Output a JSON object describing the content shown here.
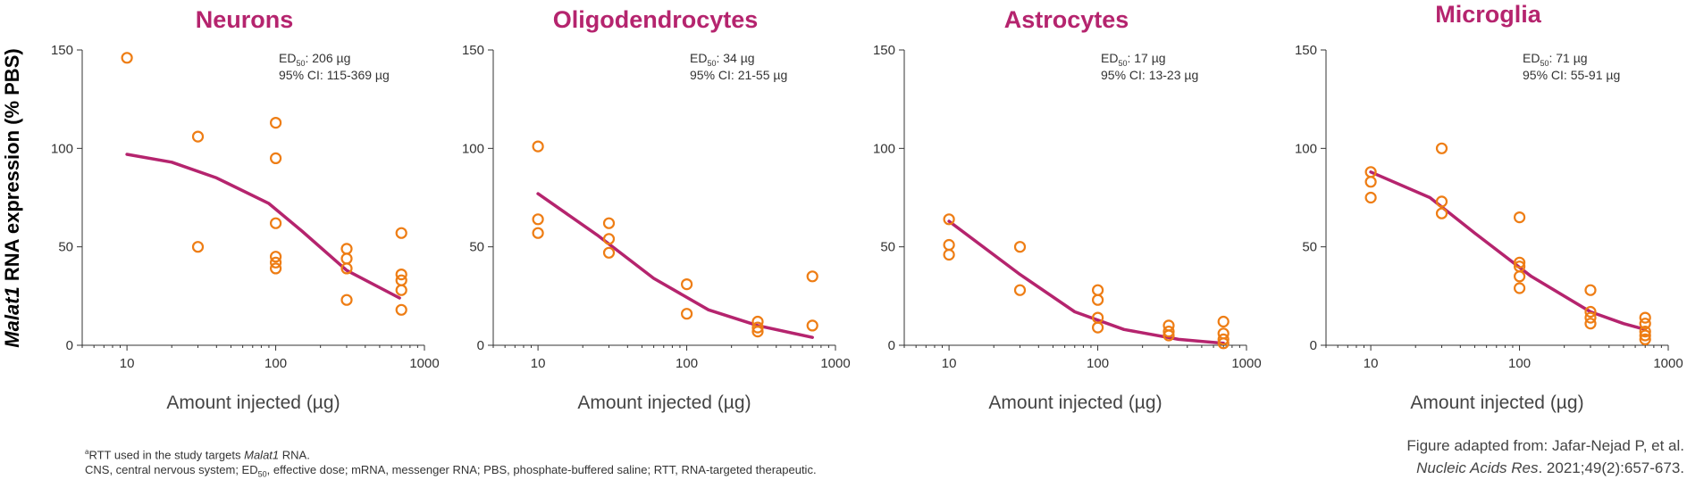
{
  "colors": {
    "accent": "#b5246e",
    "points": "#ee7d14",
    "axis": "#333333"
  },
  "y_axis_label": {
    "italic": "Malat1",
    "rest": " RNA expression (% PBS)"
  },
  "chart_data": [
    {
      "type": "scatter",
      "title": "Neurons",
      "xlabel": "Amount injected (µg)",
      "x_scale": "log",
      "xlim": [
        5,
        1000
      ],
      "ylim": [
        0,
        150
      ],
      "xticks": [
        10,
        100,
        1000
      ],
      "yticks": [
        0,
        50,
        100,
        150
      ],
      "annotation": {
        "ed50_label": "ED",
        "ed50_sub": "50",
        "ed50_value": ": 206 µg",
        "ci": "95% CI: 115-369 µg"
      },
      "points": [
        [
          10,
          146
        ],
        [
          30,
          106
        ],
        [
          30,
          50
        ],
        [
          100,
          113
        ],
        [
          100,
          95
        ],
        [
          100,
          62
        ],
        [
          100,
          45
        ],
        [
          100,
          42
        ],
        [
          100,
          39
        ],
        [
          300,
          49
        ],
        [
          300,
          44
        ],
        [
          300,
          39
        ],
        [
          300,
          23
        ],
        [
          700,
          57
        ],
        [
          700,
          36
        ],
        [
          700,
          33
        ],
        [
          700,
          28
        ],
        [
          700,
          18
        ]
      ],
      "fit": [
        [
          10,
          97
        ],
        [
          20,
          93
        ],
        [
          40,
          85
        ],
        [
          90,
          72
        ],
        [
          150,
          58
        ],
        [
          300,
          38
        ],
        [
          680,
          24
        ]
      ]
    },
    {
      "type": "scatter",
      "title": "Oligodendrocytes",
      "xlabel": "Amount injected (µg)",
      "x_scale": "log",
      "xlim": [
        5,
        1000
      ],
      "ylim": [
        0,
        150
      ],
      "xticks": [
        10,
        100,
        1000
      ],
      "yticks": [
        0,
        50,
        100,
        150
      ],
      "annotation": {
        "ed50_label": "ED",
        "ed50_sub": "50",
        "ed50_value": ": 34 µg",
        "ci": "95% CI: 21-55 µg"
      },
      "points": [
        [
          10,
          101
        ],
        [
          10,
          64
        ],
        [
          10,
          57
        ],
        [
          30,
          62
        ],
        [
          30,
          54
        ],
        [
          30,
          47
        ],
        [
          100,
          31
        ],
        [
          100,
          16
        ],
        [
          300,
          12
        ],
        [
          300,
          9
        ],
        [
          300,
          7
        ],
        [
          700,
          35
        ],
        [
          700,
          10
        ]
      ],
      "fit": [
        [
          10,
          77
        ],
        [
          25,
          56
        ],
        [
          60,
          34
        ],
        [
          140,
          18
        ],
        [
          300,
          10
        ],
        [
          700,
          4
        ]
      ]
    },
    {
      "type": "scatter",
      "title": "Astrocytes",
      "xlabel": "Amount injected (µg)",
      "x_scale": "log",
      "xlim": [
        5,
        1000
      ],
      "ylim": [
        0,
        150
      ],
      "xticks": [
        10,
        100,
        1000
      ],
      "yticks": [
        0,
        50,
        100,
        150
      ],
      "annotation": {
        "ed50_label": "ED",
        "ed50_sub": "50",
        "ed50_value": ": 17 µg",
        "ci": "95% CI: 13-23 µg"
      },
      "points": [
        [
          10,
          64
        ],
        [
          10,
          51
        ],
        [
          10,
          46
        ],
        [
          30,
          50
        ],
        [
          30,
          28
        ],
        [
          100,
          28
        ],
        [
          100,
          23
        ],
        [
          100,
          14
        ],
        [
          100,
          9
        ],
        [
          300,
          10
        ],
        [
          300,
          7
        ],
        [
          300,
          5
        ],
        [
          700,
          12
        ],
        [
          700,
          6
        ],
        [
          700,
          3
        ],
        [
          700,
          1
        ]
      ],
      "fit": [
        [
          10,
          63
        ],
        [
          30,
          36
        ],
        [
          70,
          17
        ],
        [
          150,
          8
        ],
        [
          350,
          3
        ],
        [
          700,
          1
        ]
      ]
    },
    {
      "type": "scatter",
      "title": "Microglia",
      "xlabel": "Amount injected (µg)",
      "x_scale": "log",
      "xlim": [
        5,
        1000
      ],
      "ylim": [
        0,
        150
      ],
      "xticks": [
        10,
        100,
        1000
      ],
      "yticks": [
        0,
        50,
        100,
        150
      ],
      "annotation": {
        "ed50_label": "ED",
        "ed50_sub": "50",
        "ed50_value": ": 71 µg",
        "ci": "95% CI: 55-91 µg"
      },
      "points": [
        [
          10,
          88
        ],
        [
          10,
          83
        ],
        [
          10,
          75
        ],
        [
          30,
          100
        ],
        [
          30,
          73
        ],
        [
          30,
          67
        ],
        [
          100,
          65
        ],
        [
          100,
          42
        ],
        [
          100,
          40
        ],
        [
          100,
          35
        ],
        [
          100,
          29
        ],
        [
          300,
          28
        ],
        [
          300,
          17
        ],
        [
          300,
          14
        ],
        [
          300,
          11
        ],
        [
          700,
          14
        ],
        [
          700,
          11
        ],
        [
          700,
          7
        ],
        [
          700,
          5
        ],
        [
          700,
          3
        ]
      ],
      "fit": [
        [
          10,
          88
        ],
        [
          25,
          75
        ],
        [
          50,
          57
        ],
        [
          120,
          35
        ],
        [
          300,
          17
        ],
        [
          500,
          11
        ],
        [
          700,
          8
        ]
      ]
    }
  ],
  "footnote": {
    "line1_sup": "a",
    "line1_pre": "RTT used in the study targets ",
    "line1_italic": "Malat1",
    "line1_post": " RNA.",
    "line2_a": "CNS, central nervous system; ED",
    "line2_sub": "50",
    "line2_b": ", effective dose; mRNA, messenger RNA; PBS, phosphate-buffered saline; RTT, RNA-targeted therapeutic."
  },
  "citation": {
    "line1": "Figure adapted from: Jafar-Nejad P, et al.",
    "journal": "Nucleic Acids Res",
    "rest": ". 2021;49(2):657-673."
  }
}
